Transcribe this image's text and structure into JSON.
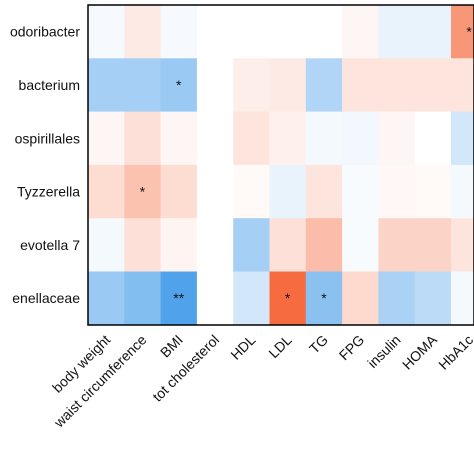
{
  "chart_data": {
    "type": "heatmap",
    "rows": [
      "odoribacter",
      "bacterium",
      "ospirillales",
      "Tyzzerella",
      "evotella 7",
      "enellaceae"
    ],
    "columns": [
      "body weight",
      "waist circumference",
      "BMI",
      "tot cholesterol",
      "HDL",
      "LDL",
      "TG",
      "FPG",
      "insulin",
      "HOMA",
      "HbA1c"
    ],
    "values": [
      [
        -0.04,
        0.12,
        -0.04,
        null,
        0.0,
        0.0,
        0.0,
        0.05,
        -0.1,
        -0.1,
        0.6
      ],
      [
        -0.4,
        -0.4,
        -0.45,
        null,
        0.1,
        0.12,
        -0.35,
        0.15,
        0.15,
        0.15,
        0.15
      ],
      [
        0.05,
        0.18,
        0.05,
        null,
        0.15,
        0.08,
        -0.05,
        -0.06,
        0.05,
        0.0,
        -0.2
      ],
      [
        0.2,
        0.35,
        0.2,
        null,
        0.03,
        -0.1,
        0.15,
        -0.03,
        0.04,
        0.03,
        -0.05
      ],
      [
        -0.05,
        0.18,
        0.06,
        null,
        -0.4,
        0.18,
        0.38,
        -0.03,
        0.25,
        0.25,
        0.15
      ],
      [
        -0.45,
        -0.55,
        -0.78,
        null,
        -0.2,
        0.85,
        -0.52,
        0.22,
        -0.38,
        -0.3,
        -0.05
      ]
    ],
    "significance": [
      [
        "",
        "",
        "",
        "",
        "",
        "",
        "",
        "",
        "",
        "",
        "*"
      ],
      [
        "",
        "",
        "*",
        "",
        "",
        "",
        "",
        "",
        "",
        "",
        ""
      ],
      [
        "",
        "",
        "",
        "",
        "",
        "",
        "",
        "",
        "",
        "",
        ""
      ],
      [
        "",
        "*",
        "",
        "",
        "",
        "",
        "",
        "",
        "",
        "",
        ""
      ],
      [
        "",
        "",
        "",
        "",
        "",
        "",
        "",
        "",
        "",
        "",
        ""
      ],
      [
        "",
        "",
        "**",
        "",
        "",
        "*",
        "*",
        "",
        "",
        "",
        ""
      ]
    ],
    "colors": {
      "negative": "#1e88e5",
      "positive": "#f4511e",
      "neutral": "#ffffff"
    }
  }
}
